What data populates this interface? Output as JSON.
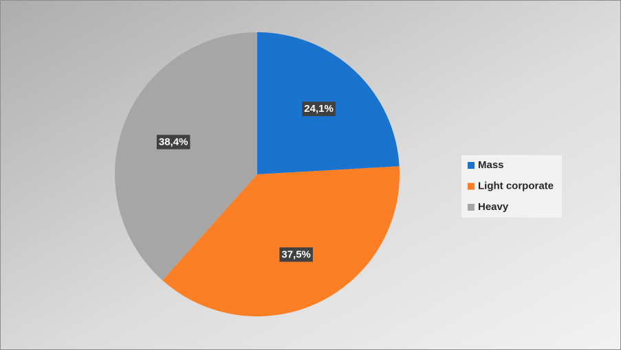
{
  "chart_data": {
    "type": "pie",
    "categories": [
      "Mass",
      "Light corporate",
      "Heavy"
    ],
    "values": [
      24.1,
      37.5,
      38.4
    ],
    "value_labels": [
      "24,1%",
      "37,5%",
      "38,4%"
    ],
    "colors": [
      "#1a73cc",
      "#fd7f25",
      "#a6a6a6"
    ],
    "legend": "right"
  }
}
